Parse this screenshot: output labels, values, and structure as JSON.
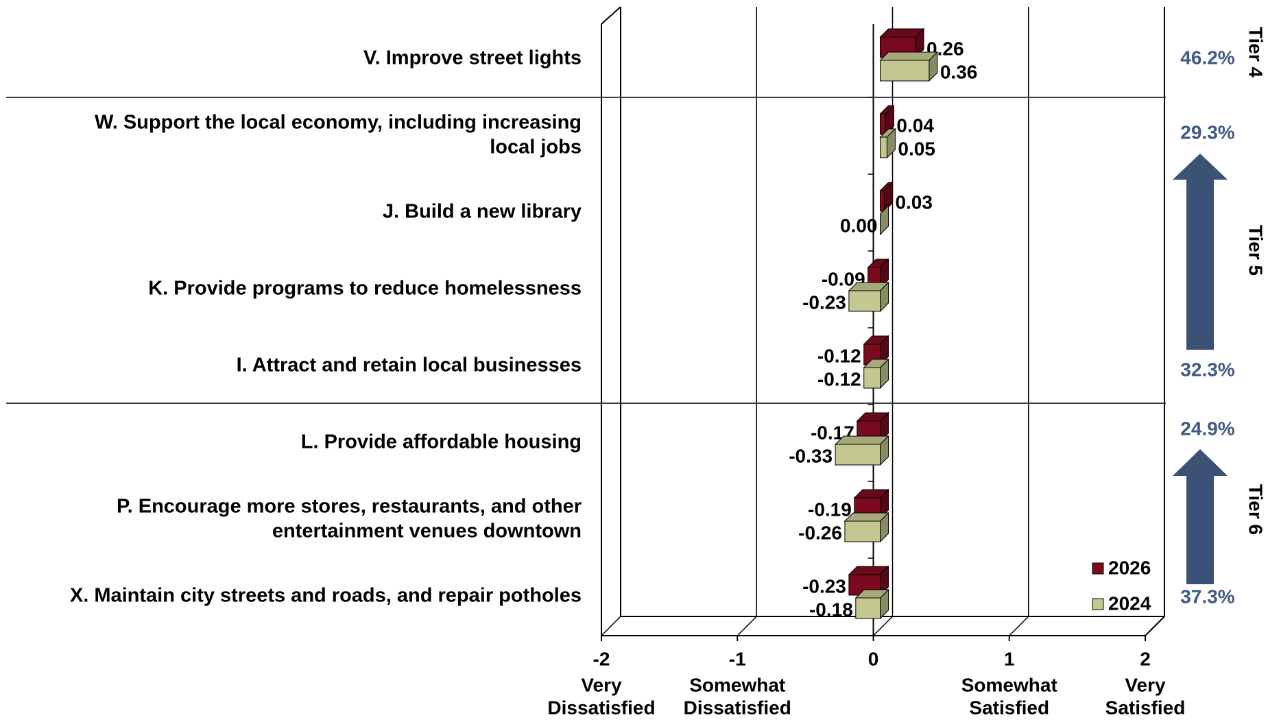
{
  "chart_data": {
    "type": "bar3d_horizontal",
    "categories": [
      [
        "V. Improve street lights"
      ],
      [
        "W. Support the local economy, including increasing",
        "local jobs"
      ],
      [
        "J. Build a new library"
      ],
      [
        "K. Provide programs to reduce homelessness"
      ],
      [
        "I. Attract and retain local businesses"
      ],
      [
        "L. Provide affordable housing"
      ],
      [
        "P. Encourage more stores, restaurants, and other",
        "entertainment venues downtown"
      ],
      [
        "X. Maintain city streets and roads, and repair potholes"
      ]
    ],
    "series": [
      {
        "name": "2026",
        "color": "#7b0a1e",
        "values": [
          0.26,
          0.04,
          0.03,
          -0.09,
          -0.12,
          -0.17,
          -0.19,
          -0.23
        ]
      },
      {
        "name": "2024",
        "color": "#c4c78f",
        "values": [
          0.36,
          0.05,
          0,
          -0.23,
          -0.12,
          -0.33,
          -0.26,
          -0.18
        ],
        "value_labels": [
          "0.36",
          "0.05",
          "0.00",
          "-0.23",
          "-0.12",
          "-0.33",
          "-0.26",
          "-0.18"
        ]
      }
    ],
    "xlim": [
      -2,
      2
    ],
    "xticks": [
      -2,
      -1,
      0,
      1,
      2
    ],
    "xtick_descriptions": [
      [
        "Very",
        "Dissatisfied"
      ],
      [
        "Somewhat",
        "Dissatisfied"
      ],
      null,
      [
        "Somewhat",
        "Satisfied"
      ],
      [
        "Very",
        "Satisfied"
      ]
    ],
    "tiers": [
      {
        "name": "Tier 4",
        "top": "46.2%"
      },
      {
        "name": "Tier 5",
        "top": "29.3%",
        "bottom": "32.3%"
      },
      {
        "name": "Tier 6",
        "top": "24.9%",
        "bottom": "37.3%"
      }
    ],
    "legend": "lower right"
  }
}
